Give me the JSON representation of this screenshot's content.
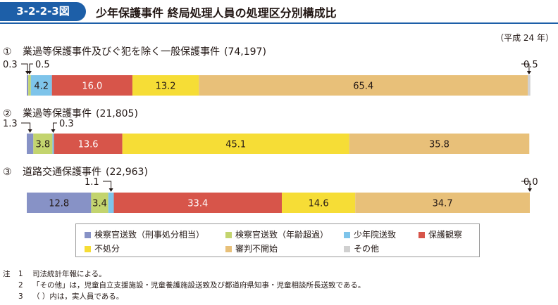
{
  "figure": {
    "number": "3-2-2-3図",
    "title": "少年保護事件 終局処理人員の処理区分別構成比",
    "unit": "（平成 24 年）"
  },
  "chart_data": {
    "type": "bar",
    "orientation": "horizontal-stacked-100",
    "categories": [
      "検察官送致（刑事処分相当）",
      "検察官送致（年齢超過）",
      "少年院送致",
      "保護観察",
      "不処分",
      "審判不開始",
      "その他"
    ],
    "colors": [
      "#8792c6",
      "#c3d46e",
      "#7ec4ea",
      "#d7554a",
      "#f6dd36",
      "#e8c079",
      "#d0d0d0"
    ],
    "series": [
      {
        "num": "①",
        "name": "業過等保護事件及びぐ犯を除く一般保護事件",
        "total": "(74,197)",
        "values": [
          0.3,
          0.5,
          4.2,
          16.0,
          13.2,
          65.4,
          0.5
        ]
      },
      {
        "num": "②",
        "name": "業過等保護事件",
        "total": "(21,805)",
        "values": [
          1.3,
          3.8,
          0.3,
          13.6,
          45.1,
          35.8,
          null
        ]
      },
      {
        "num": "③",
        "name": "道路交通保護事件",
        "total": "(22,963)",
        "values": [
          12.8,
          3.4,
          1.1,
          33.4,
          14.6,
          34.7,
          0.0
        ]
      }
    ]
  },
  "legend": {
    "items": [
      "検察官送致（刑事処分相当）",
      "検察官送致（年齢超過）",
      "少年院送致",
      "保護観察",
      "不処分",
      "審判不開始",
      "その他"
    ]
  },
  "notes": {
    "head": "注",
    "items": [
      {
        "num": "1",
        "text": "司法統計年報による。"
      },
      {
        "num": "2",
        "text": "「その他」は，児童自立支援施設・児童養護施設送致及び都道府県知事・児童相談所長送致である。"
      },
      {
        "num": "3",
        "text": "（ ）内は，実人員である。"
      }
    ]
  }
}
